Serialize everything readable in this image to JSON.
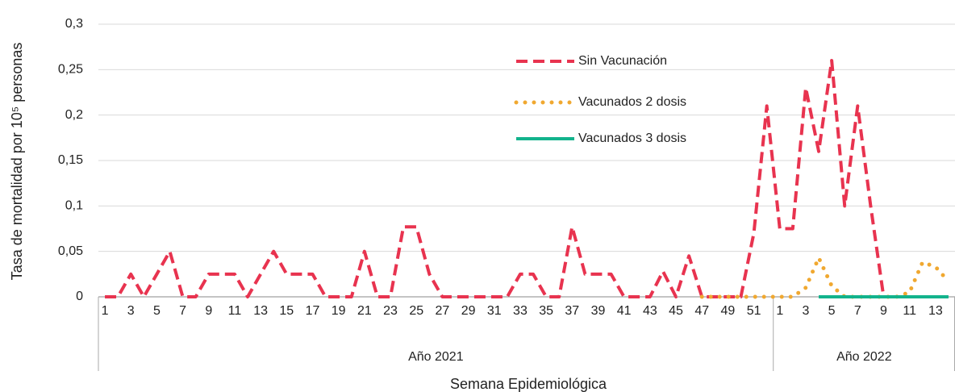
{
  "chart_data": {
    "type": "line",
    "y_label": "Tasa de mortalidad por 10⁵ personas",
    "x_label": "Semana Epidemiológica",
    "category_groups": [
      {
        "name": "Año 2021",
        "categories": [
          "1",
          null,
          "3",
          null,
          "5",
          null,
          "7",
          null,
          "9",
          null,
          "11",
          null,
          "13",
          null,
          "15",
          null,
          "17",
          null,
          "19",
          null,
          "21",
          null,
          "23",
          null,
          "25",
          null,
          "27",
          null,
          "29",
          null,
          "31",
          null,
          "33",
          null,
          "35",
          null,
          "37",
          null,
          "39",
          null,
          "41",
          null,
          "43",
          null,
          "45",
          null,
          "47",
          null,
          "49",
          null,
          "51",
          null
        ]
      },
      {
        "name": "Año 2022",
        "categories": [
          "1",
          null,
          "3",
          null,
          "5",
          null,
          "7",
          null,
          "9",
          null,
          "11",
          null,
          "13",
          null
        ]
      }
    ],
    "series": [
      {
        "name": "Sin Vacunación",
        "color": "#e8334f",
        "style": "dashed",
        "values": [
          0,
          0,
          0.025,
          0,
          0.025,
          0.05,
          0,
          0,
          0.025,
          0.025,
          0.025,
          0,
          0.025,
          0.05,
          0.025,
          0.025,
          0.025,
          0,
          0,
          0,
          0.05,
          0,
          0,
          0.077,
          0.077,
          0.025,
          0,
          0,
          0,
          0,
          0,
          0,
          0.025,
          0.025,
          0,
          0,
          0.077,
          0.025,
          0.025,
          0.025,
          0,
          0,
          0,
          0.028,
          0,
          0.045,
          0,
          0,
          0,
          0,
          0.07,
          0.21,
          0.075,
          0.075,
          0.23,
          0.16,
          0.26,
          0.1,
          0.21,
          0.1,
          0,
          null,
          null,
          null,
          null,
          null
        ]
      },
      {
        "name": "Vacunados 2 dosis",
        "color": "#f0a830",
        "style": "dotted",
        "values": [
          null,
          null,
          null,
          null,
          null,
          null,
          null,
          null,
          null,
          null,
          null,
          null,
          null,
          null,
          null,
          null,
          null,
          null,
          null,
          null,
          null,
          null,
          null,
          null,
          null,
          null,
          null,
          null,
          null,
          null,
          null,
          null,
          null,
          null,
          null,
          null,
          null,
          null,
          null,
          null,
          null,
          null,
          null,
          null,
          null,
          null,
          0,
          0,
          0,
          0,
          0,
          0,
          0,
          0,
          0.01,
          0.043,
          0.012,
          0,
          0,
          0,
          0,
          0,
          0.005,
          0.038,
          0.033,
          0.017
        ]
      },
      {
        "name": "Vacunados 3 dosis",
        "color": "#13b38c",
        "style": "solid",
        "values": [
          null,
          null,
          null,
          null,
          null,
          null,
          null,
          null,
          null,
          null,
          null,
          null,
          null,
          null,
          null,
          null,
          null,
          null,
          null,
          null,
          null,
          null,
          null,
          null,
          null,
          null,
          null,
          null,
          null,
          null,
          null,
          null,
          null,
          null,
          null,
          null,
          null,
          null,
          null,
          null,
          null,
          null,
          null,
          null,
          null,
          null,
          null,
          null,
          null,
          null,
          null,
          null,
          null,
          null,
          null,
          0,
          0,
          0,
          0,
          0,
          0,
          0,
          0,
          0,
          0,
          0
        ]
      }
    ],
    "ylim": [
      0,
      0.3
    ],
    "yticks": [
      0,
      {
        "value": 0.05,
        "label": "0,05"
      },
      {
        "value": 0.1,
        "label": "0,1"
      },
      {
        "value": 0.15,
        "label": "0,15"
      },
      {
        "value": 0.2,
        "label": "0,2"
      },
      {
        "value": 0.25,
        "label": "0,25"
      },
      {
        "value": 0.3,
        "label": "0,3"
      }
    ],
    "grid": true
  }
}
